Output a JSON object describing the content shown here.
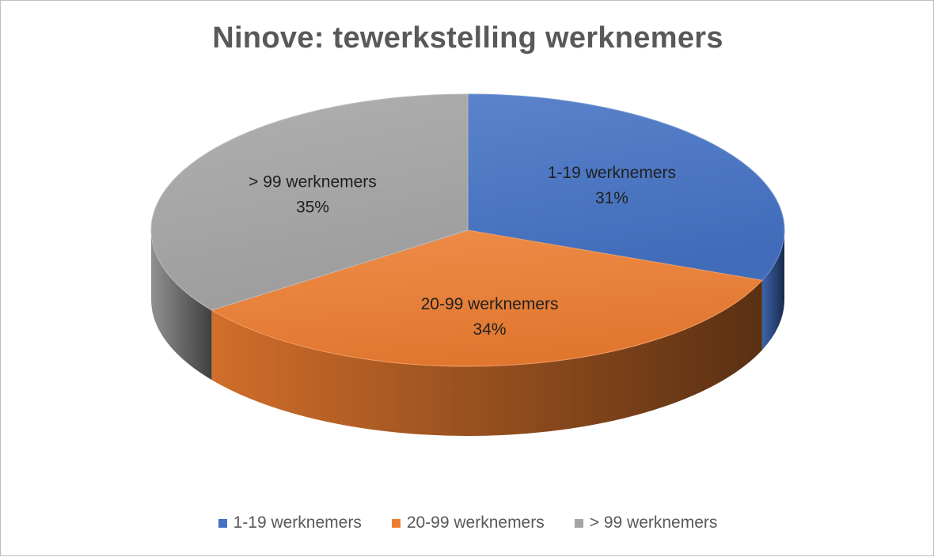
{
  "chart_data": {
    "type": "pie",
    "title": "Ninove: tewerkstelling werknemers",
    "slices": [
      {
        "label": "1-19 werknemers",
        "value": 31,
        "display": "31%",
        "color": "#4472c4"
      },
      {
        "label": "20-99 werknemers",
        "value": 34,
        "display": "34%",
        "color": "#ed7d31"
      },
      {
        "label": "> 99 werknemers",
        "value": 35,
        "display": "35%",
        "color": "#a5a5a5"
      }
    ],
    "style": "3d",
    "legend_position": "bottom"
  }
}
